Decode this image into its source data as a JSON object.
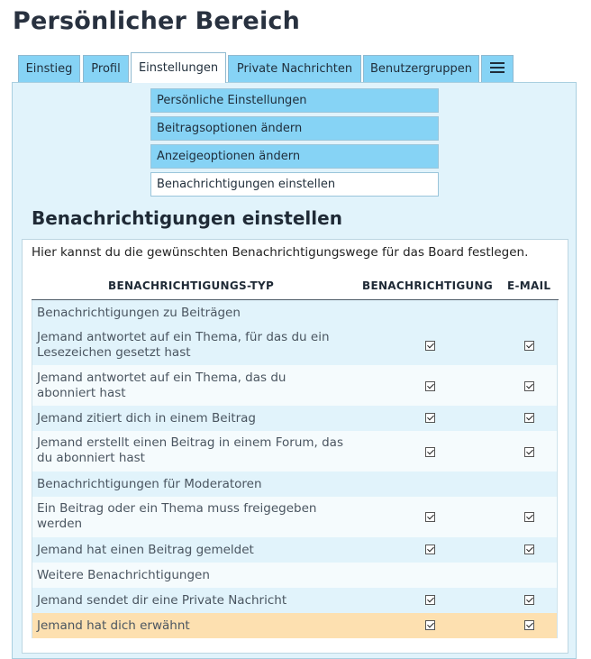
{
  "page": {
    "title": "Persönlicher Bereich"
  },
  "tabs": [
    {
      "label": "Einstieg",
      "active": false
    },
    {
      "label": "Profil",
      "active": false
    },
    {
      "label": "Einstellungen",
      "active": true
    },
    {
      "label": "Private Nachrichten",
      "active": false
    },
    {
      "label": "Benutzergruppen",
      "active": false
    },
    {
      "icon": "menu-icon",
      "active": false
    }
  ],
  "subnav": [
    {
      "label": "Persönliche Einstellungen",
      "active": false
    },
    {
      "label": "Beitragsoptionen ändern",
      "active": false
    },
    {
      "label": "Anzeigeoptionen ändern",
      "active": false
    },
    {
      "label": "Benachrichtigungen einstellen",
      "active": true
    }
  ],
  "section": {
    "title": "Benachrichtigungen einstellen",
    "intro": "Hier kannst du die gewünschten Benachrichtigungswege für das Board festlegen."
  },
  "table": {
    "headers": {
      "type": "BENACHRICHTIGUNGS-TYP",
      "notification": "BENACHRICHTIGUNG",
      "email": "E-MAIL"
    },
    "rows": [
      {
        "kind": "group",
        "label": "Benachrichtigungen zu Beiträgen"
      },
      {
        "kind": "item",
        "label": "Jemand antwortet auf ein Thema, für das du ein",
        "label2": "Lesezeichen gesetzt hast",
        "notification": true,
        "email": true
      },
      {
        "kind": "item",
        "label": "Jemand antwortet auf ein Thema, das du",
        "label2": "abonniert hast",
        "notification": true,
        "email": true
      },
      {
        "kind": "item",
        "label": "Jemand zitiert dich in einem Beitrag",
        "notification": true,
        "email": true
      },
      {
        "kind": "item",
        "label": "Jemand erstellt einen Beitrag in einem Forum, das",
        "label2": "du abonniert hast",
        "notification": true,
        "email": true
      },
      {
        "kind": "group",
        "label": "Benachrichtigungen für Moderatoren"
      },
      {
        "kind": "item",
        "label": "Ein Beitrag oder ein Thema muss freigegeben",
        "label2": "werden",
        "notification": true,
        "email": true
      },
      {
        "kind": "item",
        "label": "Jemand hat einen Beitrag gemeldet",
        "notification": true,
        "email": true
      },
      {
        "kind": "group",
        "label": "Weitere Benachrichtigungen"
      },
      {
        "kind": "item",
        "label": "Jemand sendet dir eine Private Nachricht",
        "notification": true,
        "email": true
      },
      {
        "kind": "item",
        "label": "Jemand hat dich erwähnt",
        "notification": true,
        "email": true,
        "highlighted": true
      }
    ]
  },
  "colors": {
    "tab_bg": "#86d3f5",
    "panel_bg": "#e1f3fb",
    "row_alt": "#f5fbfd",
    "highlight": "#fde0b0",
    "title": "#28313f"
  }
}
